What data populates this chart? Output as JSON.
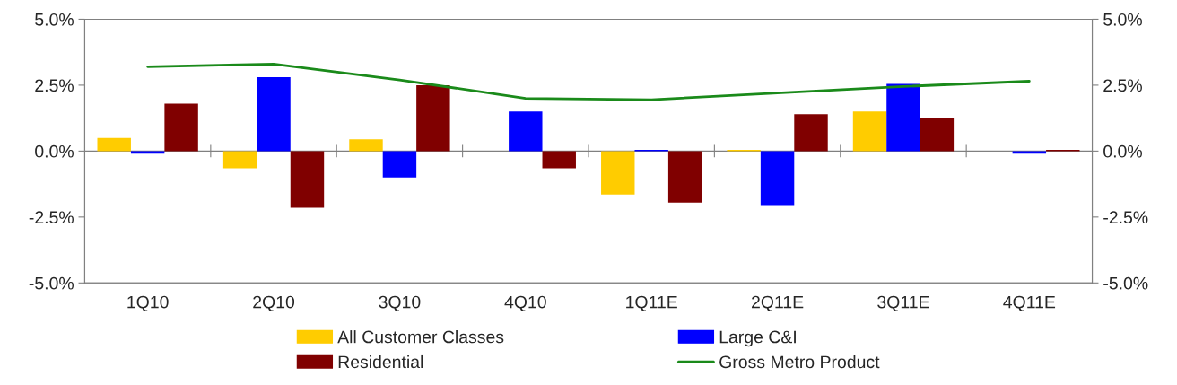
{
  "chart_data": {
    "type": "bar",
    "categories": [
      "1Q10",
      "2Q10",
      "3Q10",
      "4Q10",
      "1Q11E",
      "2Q11E",
      "3Q11E",
      "4Q11E"
    ],
    "series": [
      {
        "name": "All Customer Classes",
        "color": "#ffcc00",
        "values": [
          0.5,
          -0.65,
          0.45,
          0.0,
          -1.65,
          0.05,
          1.5,
          0.0
        ]
      },
      {
        "name": "Large C&I",
        "color": "#0000ff",
        "values": [
          -0.1,
          2.8,
          -1.0,
          1.5,
          0.05,
          -2.05,
          2.55,
          -0.1
        ]
      },
      {
        "name": "Residential",
        "color": "#800000",
        "values": [
          1.8,
          -2.15,
          2.5,
          -0.65,
          -1.95,
          1.4,
          1.25,
          0.05
        ]
      },
      {
        "name": "Gross Metro Product",
        "color": "#1a8a1a",
        "type": "line",
        "values": [
          3.2,
          3.3,
          2.7,
          2.0,
          1.95,
          2.2,
          2.45,
          2.65
        ]
      }
    ],
    "ylim": [
      -5,
      5
    ],
    "yticks": [
      {
        "value": -5,
        "label": "-5.0%"
      },
      {
        "value": -2.5,
        "label": "-2.5%"
      },
      {
        "value": 0,
        "label": "0.0%"
      },
      {
        "value": 2.5,
        "label": "2.5%"
      },
      {
        "value": 5,
        "label": "5.0%"
      }
    ],
    "y2lim": [
      -5,
      5
    ],
    "y2ticks": [
      {
        "value": -5,
        "label": "-5.0%"
      },
      {
        "value": -2.5,
        "label": "-2.5%"
      },
      {
        "value": 0,
        "label": "0.0%"
      },
      {
        "value": 2.5,
        "label": "2.5%"
      },
      {
        "value": 5,
        "label": "5.0%"
      }
    ],
    "ref_lines": [
      {
        "axis": "y",
        "value": 0,
        "color": "#808080"
      }
    ],
    "legend": "bottom",
    "grid": false,
    "marker": "none",
    "line_style": "solid"
  }
}
